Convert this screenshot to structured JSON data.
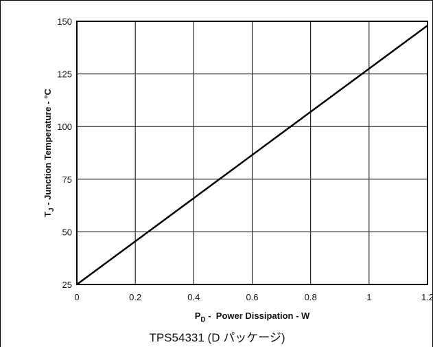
{
  "chart_data": {
    "type": "line",
    "xlabel": {
      "symbol": "P",
      "subscript": "D",
      "text": " -  Power Dissipation - W"
    },
    "ylabel": {
      "symbol": "T",
      "subscript": "J",
      "text": " - Junction Temperature - °C"
    },
    "xlim": [
      0,
      1.2
    ],
    "ylim": [
      25,
      150
    ],
    "x_ticks": [
      0,
      0.2,
      0.4,
      0.6,
      0.8,
      1,
      1.2
    ],
    "x_tick_labels": [
      "0",
      "0.2",
      "0.4",
      "0.6",
      "0.8",
      "1",
      "1.2"
    ],
    "y_ticks": [
      25,
      50,
      75,
      100,
      125,
      150
    ],
    "y_tick_labels": [
      "25",
      "50",
      "75",
      "100",
      "125",
      "150"
    ],
    "grid": true,
    "series": [
      {
        "x": [
          0,
          1.2
        ],
        "y": [
          25,
          148
        ]
      }
    ],
    "line_color": "#000000"
  },
  "caption": "TPS54331 (D パッケージ)"
}
